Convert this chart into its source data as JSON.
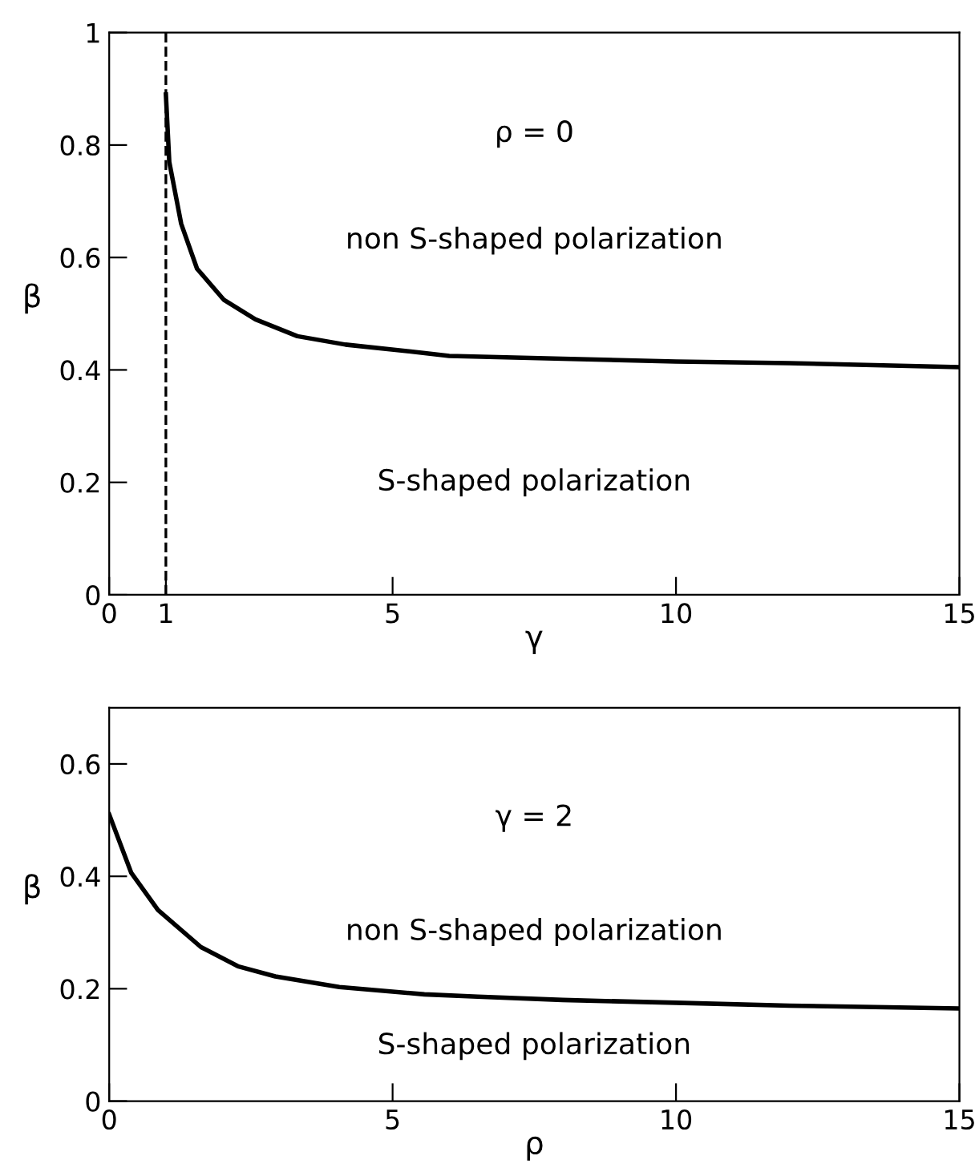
{
  "chart_data": [
    {
      "type": "line",
      "xlabel": "γ",
      "ylabel": "β",
      "xlim": [
        0,
        15
      ],
      "ylim": [
        0,
        1
      ],
      "xticks": [
        0,
        1,
        5,
        10,
        15
      ],
      "yticks": [
        0,
        0.2,
        0.4,
        0.6,
        0.8,
        1
      ],
      "grid": false,
      "legend": false,
      "series": [
        {
          "color": "#000000",
          "x": [
            1.0,
            1.06,
            1.27,
            1.55,
            2.02,
            2.58,
            3.32,
            4.17,
            5.57,
            6,
            8,
            10,
            12,
            15
          ],
          "values": [
            0.89,
            0.77,
            0.66,
            0.58,
            0.525,
            0.49,
            0.46,
            0.445,
            0.43,
            0.425,
            0.42,
            0.415,
            0.412,
            0.405
          ]
        }
      ],
      "ref_lines": [
        {
          "axis": "x",
          "value": 1,
          "line_style": "dashed",
          "color": "#000000"
        }
      ],
      "annotations": [
        "ρ = 0",
        "non S-shaped polarization",
        "S-shaped polarization"
      ]
    },
    {
      "type": "line",
      "xlabel": "ρ",
      "ylabel": "β",
      "xlim": [
        0,
        15
      ],
      "ylim": [
        0,
        0.7
      ],
      "xticks": [
        0,
        5,
        10,
        15
      ],
      "yticks": [
        0,
        0.2,
        0.4,
        0.6
      ],
      "grid": false,
      "legend": false,
      "series": [
        {
          "color": "#000000",
          "x": [
            0,
            0.39,
            0.86,
            1.62,
            2.27,
            2.93,
            4.06,
            5.56,
            6.5,
            8,
            10,
            12,
            15
          ],
          "values": [
            0.51,
            0.406,
            0.34,
            0.274,
            0.24,
            0.222,
            0.203,
            0.19,
            0.186,
            0.18,
            0.175,
            0.17,
            0.165
          ]
        }
      ],
      "annotations": [
        "γ = 2",
        "non S-shaped polarization",
        "S-shaped polarization"
      ]
    }
  ]
}
